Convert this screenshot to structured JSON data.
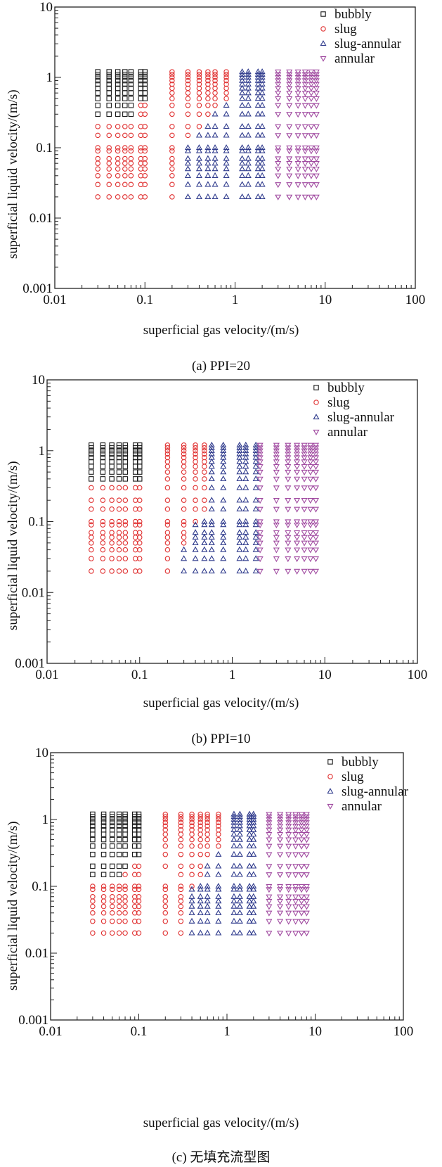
{
  "figure": {
    "x_values": [
      0.03,
      0.04,
      0.05,
      0.06,
      0.07,
      0.09,
      0.1,
      0.2,
      0.3,
      0.4,
      0.5,
      0.6,
      0.8,
      1.2,
      1.4,
      1.8,
      2.0,
      3,
      4,
      5,
      6,
      7,
      8
    ],
    "y_values": [
      0.02,
      0.03,
      0.04,
      0.05,
      0.06,
      0.07,
      0.09,
      0.1,
      0.15,
      0.2,
      0.3,
      0.4,
      0.5,
      0.6,
      0.7,
      0.8,
      0.9,
      1.0,
      1.1,
      1.2
    ],
    "regime_codes": {
      "B": "bubbly",
      "S": "slug",
      "T": "slug-annular",
      "A": "annular"
    },
    "colors": {
      "bubbly": "#1a1a1a",
      "slug": "#e03030",
      "slug-annular": "#2e3a8c",
      "annular": "#a04aa0"
    },
    "markers": {
      "bubbly": "square",
      "slug": "circle",
      "slug-annular": "triangle-up",
      "annular": "triangle-down"
    }
  },
  "chart_data": [
    {
      "type": "scatter",
      "title": "(a) PPI=20",
      "xlabel": "superficial gas velocity/(m/s)",
      "ylabel": "superficial liquid velocity/(m/s)",
      "xscale": "log",
      "yscale": "log",
      "xlim": [
        0.01,
        100
      ],
      "ylim": [
        0.001,
        10
      ],
      "xticks": [
        "0.01",
        "0.1",
        "1",
        "10",
        "100"
      ],
      "yticks": [
        "0.001",
        "0.01",
        "0.1",
        "1",
        "10"
      ],
      "legend": [
        "bubbly",
        "slug",
        "slug-annular",
        "annular"
      ],
      "legend_position": "top-right",
      "grid": false,
      "regime_map_rows_from_y_high_to_low": [
        "BBBBBBBSSSSSSTTTTAAAAAA",
        "BBBBBBBSSSSSSTTTTAAAAAA",
        "BBBBBBBSSSSSSTTTTAAAAAA",
        "BBBBBBBSSSSSSTTTTAAAAAA",
        "BBBBBBBSSSSSSTTTTAAAAAA",
        "BBBBBBBSSSSSSTTTTAAAAAA",
        "BBBBBBBSSSSSSTTTTAAAAAA",
        "BBBBBBBSSSSSSTTTTAAAAAA",
        "BBBBBSSSSSSSTTTTTAAAAAA",
        "BBBBBSSSSSSTTTTTTAAAAAA",
        "SSSSSSSSSSTTTTTTTAAAAAA",
        "SSSSSSSSSTTTTTTTTAAAAAA",
        "SSSSSSSSTTTTTTTTTAAAAAA",
        "SSSSSSSSTTTTTTTTTAAAAAA",
        "SSSSSSSSTTTTTTTTTAAAAAA",
        "SSSSSSSSTTTTTTTTTAAAAAA",
        "SSSSSSSSTTTTTTTTTAAAAAA",
        "SSSSSSSSTTTTTTTTTAAAAAA",
        "SSSSSSSSTTTTTTTTTAAAAAA",
        "SSSSSSSSTTTTTTTTTAAAAAA"
      ]
    },
    {
      "type": "scatter",
      "title": "(b) PPI=10",
      "xlabel": "superficial gas velocity/(m/s)",
      "ylabel": "superficial liquid velocity/(m/s)",
      "xscale": "log",
      "yscale": "log",
      "xlim": [
        0.01,
        100
      ],
      "ylim": [
        0.001,
        10
      ],
      "xticks": [
        "0.01",
        "0.1",
        "1",
        "10",
        "100"
      ],
      "yticks": [
        "0.001",
        "0.01",
        "0.1",
        "1",
        "10"
      ],
      "legend": [
        "bubbly",
        "slug",
        "slug-annular",
        "annular"
      ],
      "legend_position": "top-right",
      "grid": false,
      "regime_map_rows_from_y_high_to_low": [
        "BBBBBBBSSSSTTTTTAAAAAAA",
        "BBBBBBBSSSSTTTTTAAAAAAA",
        "BBBBBBBSSSSTTTTTAAAAAAA",
        "BBBBBBBSSSSTTTTTAAAAAAA",
        "BBBBBBBSSSSTTTTTAAAAAAA",
        "BBBBBBBSSSSTTTTTAAAAAAA",
        "BBBBBBBSSSSTTTTTAAAAAAA",
        "BBBBBBBSSSSTTTTTAAAAAAA",
        "BBBBBBBSSSSTTTTTAAAAAAA",
        "SSSSSSSSSSSTTTTTAAAAAAA",
        "SSSSSSSSSSSTTTTTAAAAAAA",
        "SSSSSSSSSSSTTTTTAAAAAAA",
        "SSSSSSSSSSTTTTTTAAAAAAA",
        "SSSSSSSSSTTTTTTTAAAAAAA",
        "SSSSSSSSSTTTTTTTAAAAAAA",
        "SSSSSSSSSTTTTTTTAAAAAAA",
        "SSSSSSSSSTTTTTTTAAAAAAA",
        "SSSSSSSSTTTTTTTTAAAAAAA",
        "SSSSSSSSTTTTTTTTAAAAAAA",
        "SSSSSSSSTTTTTTTTAAAAAAA"
      ]
    },
    {
      "type": "scatter",
      "title": "(c) 无填充流型图",
      "xlabel": "superficial gas velocity/(m/s)",
      "ylabel": "superficial liquid velocity/(m/s)",
      "xscale": "log",
      "yscale": "log",
      "xlim": [
        0.01,
        100
      ],
      "ylim": [
        0.001,
        10
      ],
      "xticks": [
        "0.01",
        "0.1",
        "1",
        "10",
        "100"
      ],
      "yticks": [
        "0.001",
        "0.01",
        "0.1",
        "1",
        "10"
      ],
      "legend": [
        "bubbly",
        "slug",
        "slug-annular",
        "annular"
      ],
      "legend_position": "top-right",
      "grid": false,
      "regime_map_rows_from_y_high_to_low": [
        "BBBBBBBSSSSSSTTTTAAAAAA",
        "BBBBBBBSSSSSSTTTTAAAAAA",
        "BBBBBBBSSSSSSTTTTAAAAAA",
        "BBBBBBBSSSSSSTTTTAAAAAA",
        "BBBBBBBSSSSSSTTTTAAAAAA",
        "BBBBBBBSSSSSSTTTTAAAAAA",
        "BBBBBBBSSSSSSTTTTAAAAAA",
        "BBBBBBBSSSSSSTTTTAAAAAA",
        "BBBBBBBSSSSSSTTTTAAAAAA",
        "BBBBBBBSSSSSTTTTTAAAAAA",
        "BBBBBSSSSSSTTTTTTAAAAAA",
        "BBBBSSS.SSSTTTTTTAAAAAA",
        "SSSSSSSSSSTTTTTTTAAAAAA",
        "SSSSSSSSSTTTTTTTTAAAAAA",
        "SSSSSSSSSTTTTTTTTAAAAAA",
        "SSSSSSSSSTTTTTTTTAAAAAA",
        "SSSSSSSSSTTTTTTTTAAAAAA",
        "SSSSSSSSSTTTTTTTTAAAAAA",
        "SSSSSSSSSTTTTTTTTAAAAAA",
        "SSSSSSSSSTTTTTTTTAAAAAA"
      ]
    }
  ]
}
